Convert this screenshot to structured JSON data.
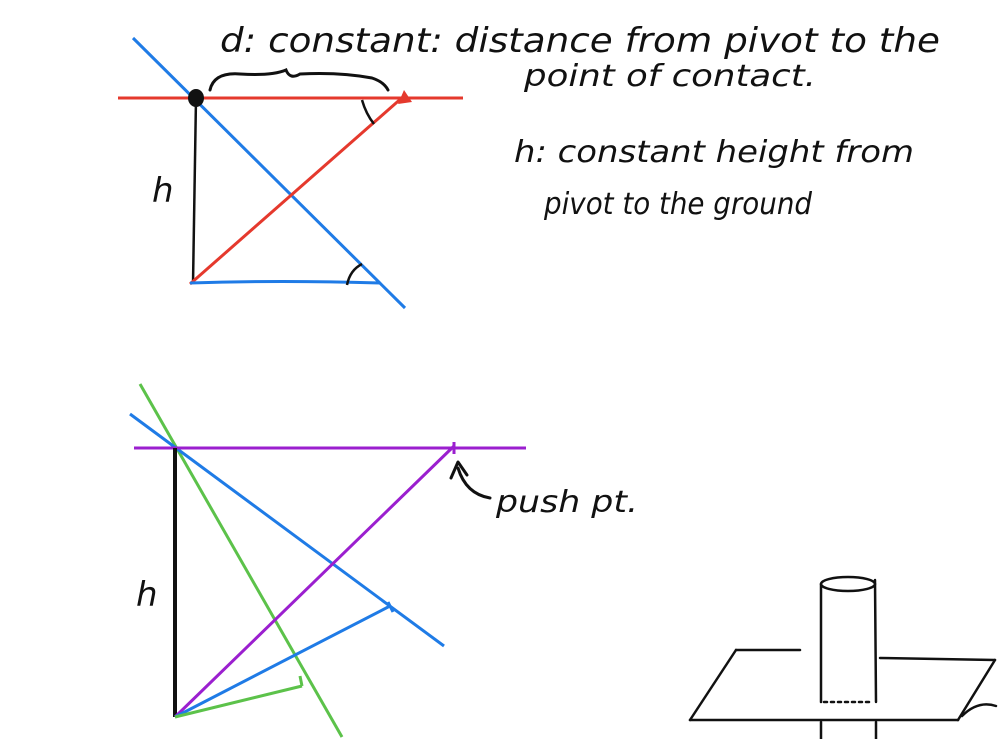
{
  "annotations": {
    "d_line1": "d: constant: distance from pivot to the",
    "d_line2": "point of contact.",
    "h_line1": "h: constant height from",
    "h_line2": "pivot to the ground",
    "h_label_top": "h",
    "h_label_bottom": "h",
    "push_label": "push pt."
  },
  "colors": {
    "red": "#e5392d",
    "blue": "#1f7be6",
    "purple": "#9b1fcf",
    "green": "#5cc24a",
    "ink": "#111111"
  }
}
